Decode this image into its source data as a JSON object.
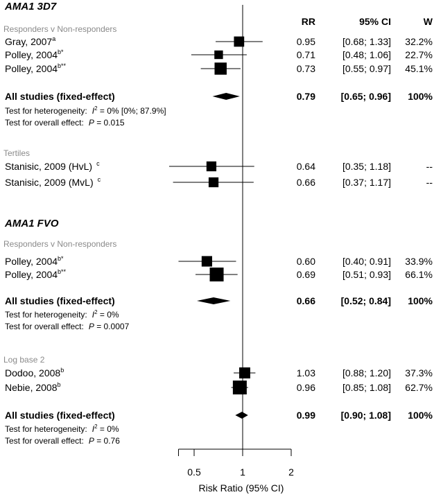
{
  "columns": {
    "rr": "RR",
    "ci": "95% CI",
    "w": "W"
  },
  "sections": [
    {
      "title": "AMA1 3D7",
      "groups": [
        {
          "label": "Responders v Non-responders",
          "studies": [
            {
              "name": "Gray, 2007",
              "sup": "a",
              "rr": 0.95,
              "lo": 0.68,
              "hi": 1.33,
              "rr_text": "0.95",
              "ci_text": "[0.68; 1.33]",
              "w_text": "32.2%",
              "weight": 32.2
            },
            {
              "name": "Polley, 2004",
              "sup": "b*",
              "rr": 0.71,
              "lo": 0.48,
              "hi": 1.06,
              "rr_text": "0.71",
              "ci_text": "[0.48; 1.06]",
              "w_text": "22.7%",
              "weight": 22.7
            },
            {
              "name": "Polley, 2004",
              "sup": "b**",
              "rr": 0.73,
              "lo": 0.55,
              "hi": 0.97,
              "rr_text": "0.73",
              "ci_text": "[0.55; 0.97]",
              "w_text": "45.1%",
              "weight": 45.1
            }
          ],
          "pooled": {
            "label": "All studies  (fixed-effect)",
            "rr": 0.79,
            "lo": 0.65,
            "hi": 0.96,
            "rr_text": "0.79",
            "ci_text": "[0.65; 0.96]",
            "w_text": "100%",
            "het_label": "Test for heterogeneity:",
            "het_stat": "I",
            "het_value": " = 0% [0%; 87.9%]",
            "overall_label": "Test for overall effect:",
            "overall_stat": "P",
            "overall_value": " = 0.015"
          }
        },
        {
          "label": "Tertiles",
          "studies": [
            {
              "name": "Stanisic, 2009 (HvL)",
              "sup": "c",
              "rr": 0.64,
              "lo": 0.35,
              "hi": 1.18,
              "rr_text": "0.64",
              "ci_text": "[0.35; 1.18]",
              "w_text": "--",
              "weight": 30
            },
            {
              "name": "Stanisic, 2009 (MvL)",
              "sup": "c",
              "rr": 0.66,
              "lo": 0.37,
              "hi": 1.17,
              "rr_text": "0.66",
              "ci_text": "[0.37; 1.17]",
              "w_text": "--",
              "weight": 30
            }
          ]
        }
      ]
    },
    {
      "title": "AMA1 FVO",
      "groups": [
        {
          "label": "Responders v Non-responders",
          "studies": [
            {
              "name": "Polley, 2004",
              "sup": "b*",
              "rr": 0.6,
              "lo": 0.4,
              "hi": 0.91,
              "rr_text": "0.60",
              "ci_text": "[0.40; 0.91]",
              "w_text": "33.9%",
              "weight": 33.9
            },
            {
              "name": "Polley, 2004",
              "sup": "b**",
              "rr": 0.69,
              "lo": 0.51,
              "hi": 0.93,
              "rr_text": "0.69",
              "ci_text": "[0.51; 0.93]",
              "w_text": "66.1%",
              "weight": 66.1
            }
          ],
          "pooled": {
            "label": "All studies  (fixed-effect)",
            "rr": 0.66,
            "lo": 0.52,
            "hi": 0.84,
            "rr_text": "0.66",
            "ci_text": "[0.52; 0.84]",
            "w_text": "100%",
            "het_label": "Test for heterogeneity:",
            "het_stat": "I",
            "het_value": " = 0%",
            "overall_label": "Test for overall effect:",
            "overall_stat": "P",
            "overall_value": " = 0.0007"
          }
        },
        {
          "label": "Log base 2",
          "studies": [
            {
              "name": "Dodoo, 2008",
              "sup": "b",
              "rr": 1.03,
              "lo": 0.88,
              "hi": 1.2,
              "rr_text": "1.03",
              "ci_text": "[0.88; 1.20]",
              "w_text": "37.3%",
              "weight": 37.3
            },
            {
              "name": "Nebie, 2008",
              "sup": "b",
              "rr": 0.96,
              "lo": 0.85,
              "hi": 1.08,
              "rr_text": "0.96",
              "ci_text": "[0.85; 1.08]",
              "w_text": "62.7%",
              "weight": 62.7
            }
          ],
          "pooled": {
            "label": "All studies  (fixed-effect)",
            "rr": 0.99,
            "lo": 0.9,
            "hi": 1.08,
            "rr_text": "0.99",
            "ci_text": "[0.90; 1.08]",
            "w_text": "100%",
            "het_label": "Test for heterogeneity:",
            "het_stat": "I",
            "het_value": " = 0%",
            "overall_label": "Test for overall effect:",
            "overall_stat": "P",
            "overall_value": " = 0.76"
          }
        }
      ]
    }
  ],
  "chart_data": {
    "type": "forest",
    "title": "",
    "xlabel": "Risk Ratio (95% CI)",
    "xscale": "log",
    "xlim": [
      0.4,
      2
    ],
    "reference_line": 1,
    "ticks": [
      {
        "value": 0.5,
        "label": "0.5"
      },
      {
        "value": 1,
        "label": "1"
      },
      {
        "value": 2,
        "label": "2"
      }
    ],
    "minor_ticks": [
      0.4
    ]
  }
}
